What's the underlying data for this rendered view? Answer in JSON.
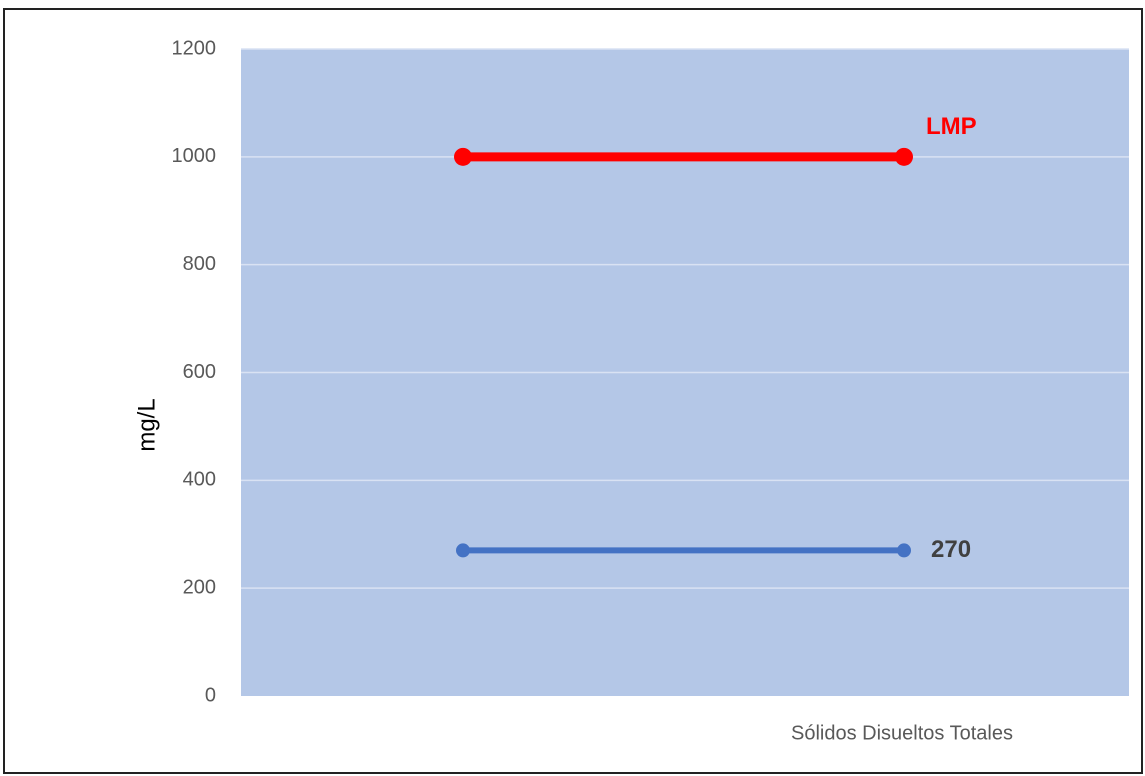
{
  "chart_data": {
    "type": "line",
    "title": "",
    "xlabel": "",
    "ylabel": "mg/L",
    "categories": [
      "",
      "Sólidos Disueltos Totales"
    ],
    "ylim": [
      0,
      1200
    ],
    "yticks": [
      0,
      200,
      400,
      600,
      800,
      1000,
      1200
    ],
    "grid": true,
    "plot_background": "#b4c7e7",
    "series": [
      {
        "name": "LMP",
        "values": [
          1000,
          1000
        ],
        "color": "#ff0000",
        "end_label": "LMP"
      },
      {
        "values": [
          270,
          270
        ],
        "color": "#4472c4",
        "end_label": "270"
      }
    ]
  }
}
